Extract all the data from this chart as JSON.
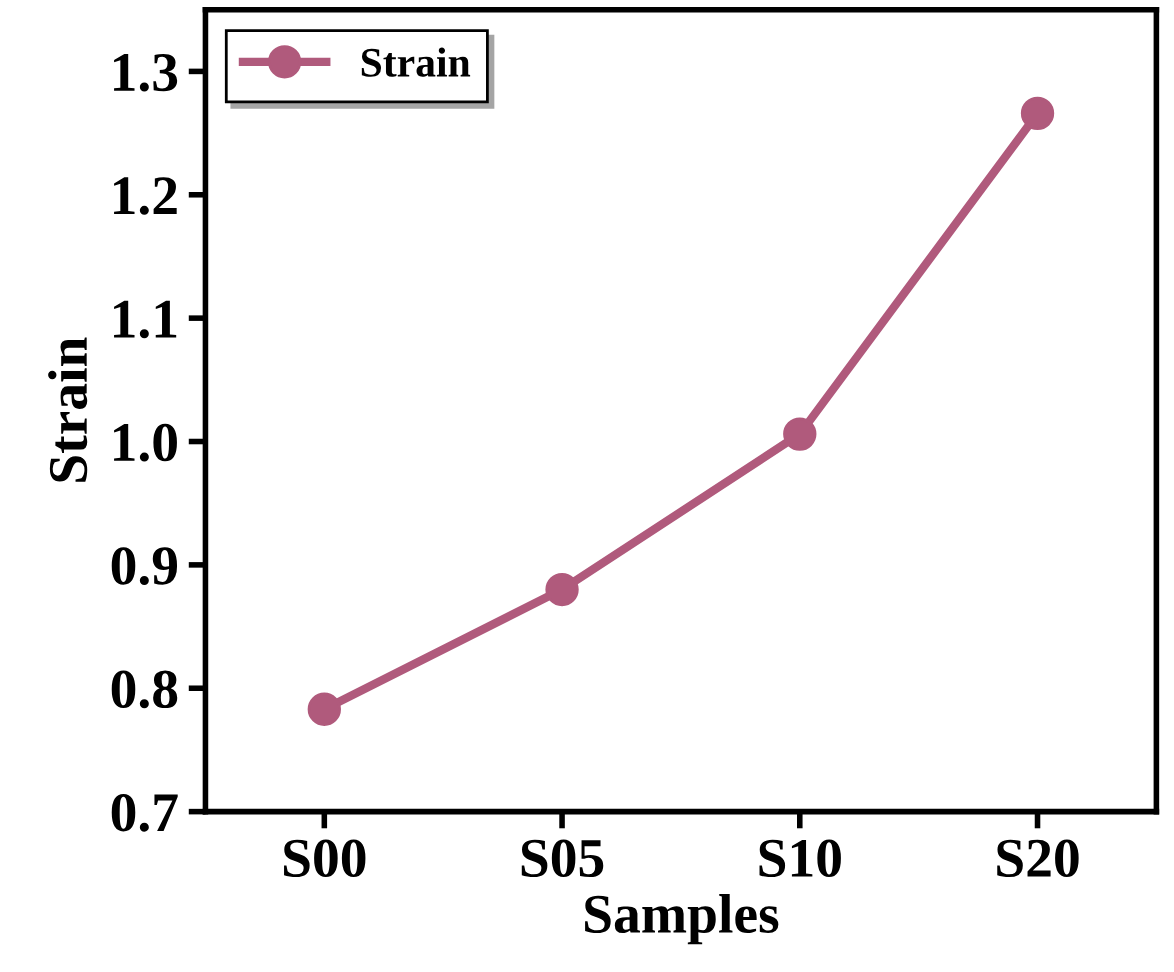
{
  "chart_data": {
    "type": "line",
    "xlabel": "Samples",
    "ylabel": "Strain",
    "categories": [
      "S00",
      "S05",
      "S10",
      "S20"
    ],
    "series": [
      {
        "name": "Strain",
        "color": "#b05a7c",
        "values": [
          0.783,
          0.88,
          1.006,
          1.266
        ]
      }
    ],
    "ylim": [
      0.7,
      1.35
    ],
    "yticks": [
      0.7,
      0.8,
      0.9,
      {
        "value": 1.0,
        "label": "1.0"
      },
      1.1,
      1.2,
      1.3
    ],
    "marker": "circle",
    "line_style": "solid",
    "legend": "top left",
    "grid": false
  }
}
